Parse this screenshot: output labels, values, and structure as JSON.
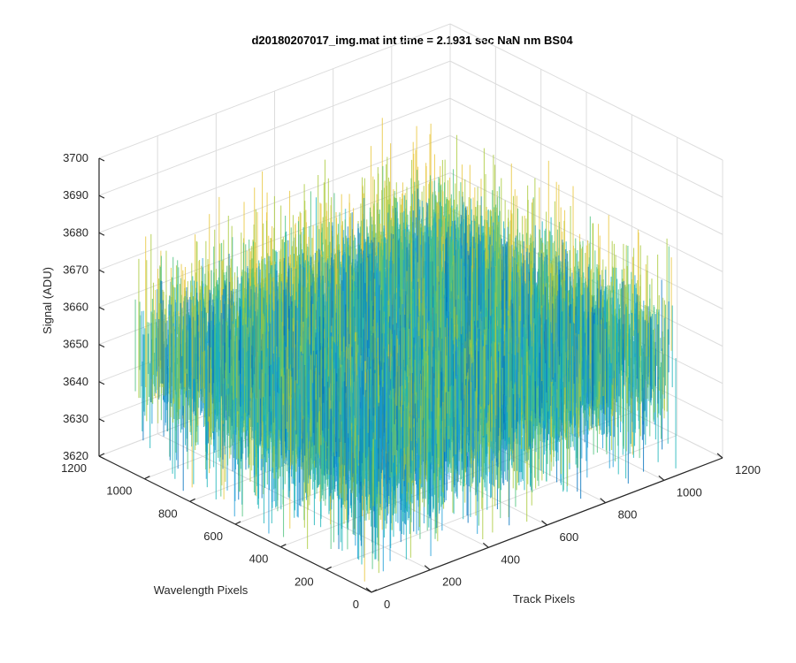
{
  "chart_data": {
    "type": "surface",
    "title": "d20180207017_img.mat int time = 2.1931 sec  NaN nm BS04",
    "xlabel": "Track Pixels",
    "ylabel": "Wavelength Pixels",
    "zlabel": "Signal (ADU)",
    "xlim": [
      0,
      1200
    ],
    "ylim": [
      0,
      1200
    ],
    "zlim": [
      3620,
      3700
    ],
    "x_ticks": [
      "0",
      "200",
      "400",
      "600",
      "800",
      "1000",
      "1200"
    ],
    "y_ticks": [
      "0",
      "200",
      "400",
      "600",
      "800",
      "1000",
      "1200"
    ],
    "z_ticks": [
      "3620",
      "3630",
      "3640",
      "3650",
      "3660",
      "3670",
      "3680",
      "3690",
      "3700"
    ],
    "surface": {
      "x_range": [
        0,
        1040
      ],
      "y_range": [
        0,
        1040
      ],
      "mean": 3652,
      "approx_min": 3622,
      "approx_max": 3694,
      "colormap": "parula",
      "colors": [
        "#0072bd",
        "#1a9bd7",
        "#18b3b8",
        "#4cc27c",
        "#a9c93a",
        "#e8c53a"
      ]
    },
    "grid": true,
    "legend": "none"
  }
}
